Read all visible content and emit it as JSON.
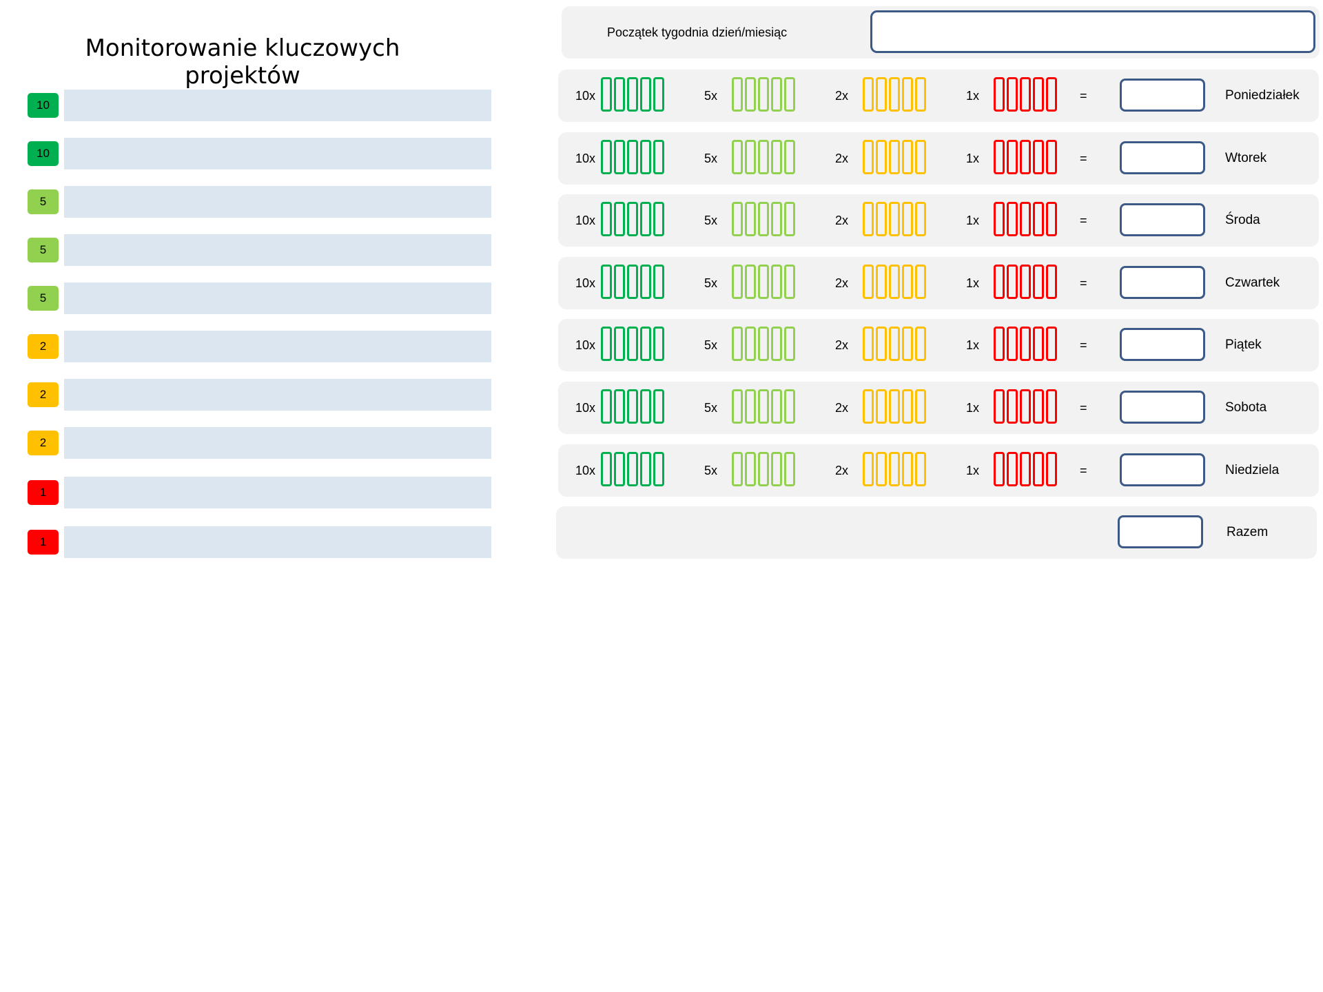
{
  "title": "Monitorowanie kluczowych projektów",
  "colors": {
    "green_dark": "#00b050",
    "green_light": "#92d050",
    "yellow": "#ffc000",
    "red": "#ff0000",
    "project_bar": "#dce6f1",
    "panel": "#f2f2f2",
    "input_border": "#3d5a87"
  },
  "projects": [
    {
      "priority": "10",
      "color": "#00b050"
    },
    {
      "priority": "10",
      "color": "#00b050"
    },
    {
      "priority": "5",
      "color": "#92d050"
    },
    {
      "priority": "5",
      "color": "#92d050"
    },
    {
      "priority": "5",
      "color": "#92d050"
    },
    {
      "priority": "2",
      "color": "#ffc000"
    },
    {
      "priority": "2",
      "color": "#ffc000"
    },
    {
      "priority": "2",
      "color": "#ffc000"
    },
    {
      "priority": "1",
      "color": "#ff0000"
    },
    {
      "priority": "1",
      "color": "#ff0000"
    }
  ],
  "week_start": {
    "label": "Początek tygodnia dzień/miesiąc",
    "value": ""
  },
  "multipliers": [
    {
      "label": "10x",
      "color": "#00b050"
    },
    {
      "label": "5x",
      "color": "#92d050"
    },
    {
      "label": "2x",
      "color": "#ffc000"
    },
    {
      "label": "1x",
      "color": "#ff0000"
    }
  ],
  "equals_sign": "=",
  "days": [
    {
      "label": "Poniedziałek",
      "value": ""
    },
    {
      "label": "Wtorek",
      "value": ""
    },
    {
      "label": "Środa",
      "value": ""
    },
    {
      "label": "Czwartek",
      "value": ""
    },
    {
      "label": "Piątek",
      "value": ""
    },
    {
      "label": "Sobota",
      "value": ""
    },
    {
      "label": "Niedziela",
      "value": ""
    }
  ],
  "total": {
    "label": "Razem",
    "value": ""
  }
}
